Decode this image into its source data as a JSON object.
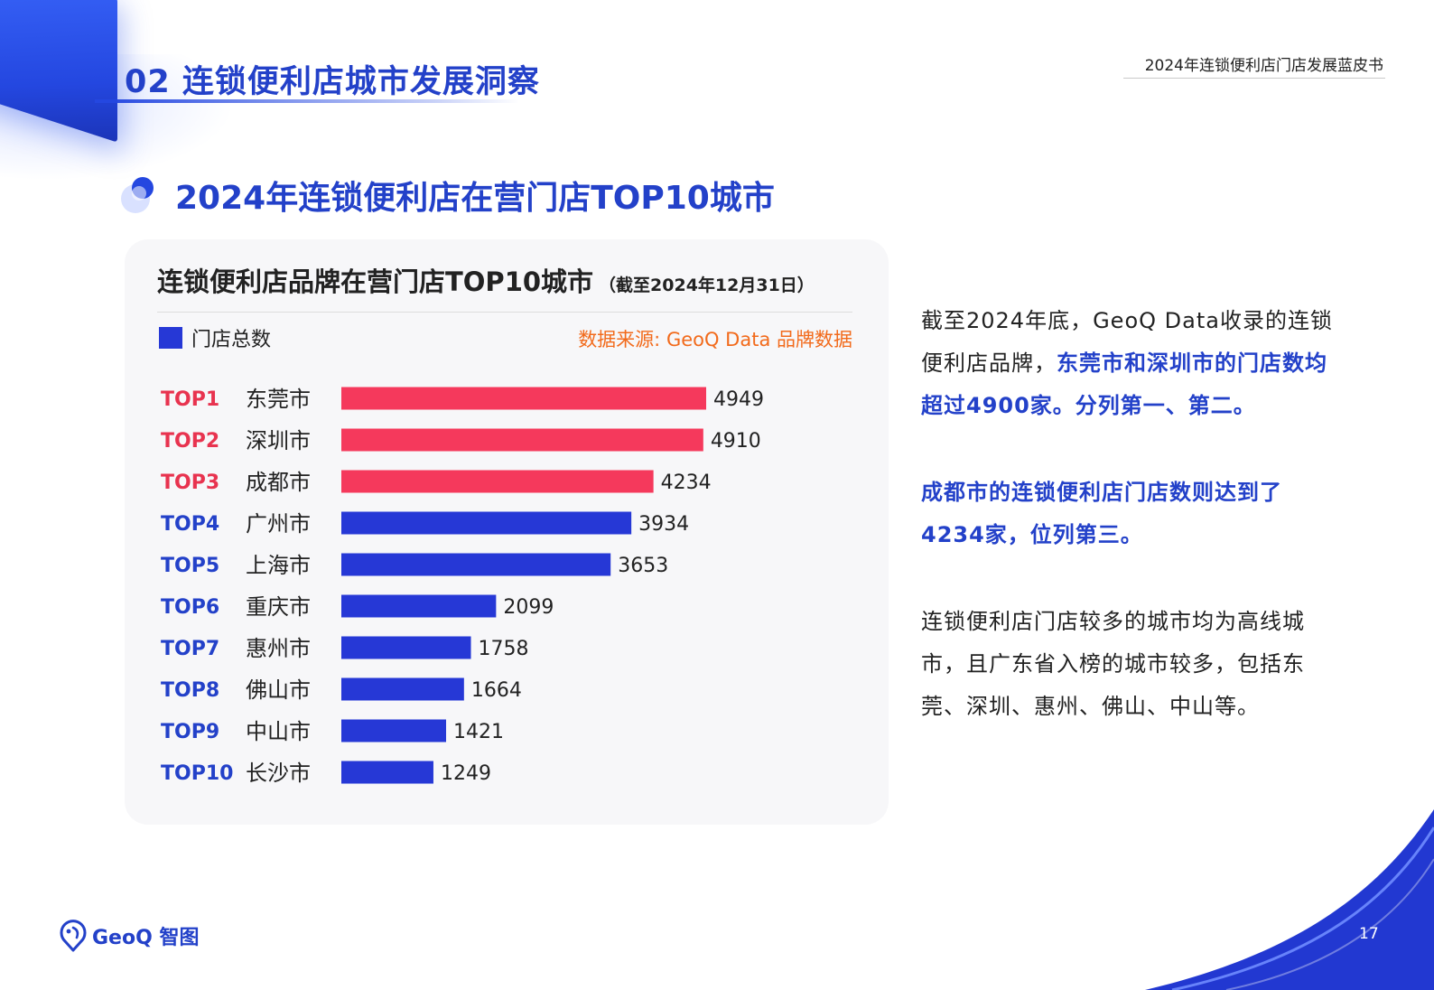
{
  "header": {
    "section_title": "02 连锁便利店城市发展洞察",
    "doc_title": "2024年连锁便利店门店发展蓝皮书"
  },
  "subtitle": "2024年连锁便利店在营门店TOP10城市",
  "chart": {
    "title": "连锁便利店品牌在营门店TOP10城市",
    "title_note": "（截至2024年12月31日）",
    "legend_label": "门店总数",
    "source": "数据来源: GeoQ Data 品牌数据"
  },
  "chart_data": {
    "type": "bar",
    "orientation": "horizontal",
    "ranks": [
      "TOP1",
      "TOP2",
      "TOP3",
      "TOP4",
      "TOP5",
      "TOP6",
      "TOP7",
      "TOP8",
      "TOP9",
      "TOP10"
    ],
    "categories": [
      "东莞市",
      "深圳市",
      "成都市",
      "广州市",
      "上海市",
      "重庆市",
      "惠州市",
      "佛山市",
      "中山市",
      "长沙市"
    ],
    "series": [
      {
        "name": "门店总数",
        "values": [
          4949,
          4910,
          4234,
          3934,
          3653,
          2099,
          1758,
          1664,
          1421,
          1249
        ]
      }
    ],
    "data_labels": true,
    "xlim": [
      0,
      4949
    ],
    "grid": false,
    "legend": "top-left",
    "colors": {
      "top3": "#f5395c",
      "rest": "#2638d6",
      "top3_rank_label": "#e8334f",
      "rest_rank_label": "#2341c9"
    }
  },
  "body": {
    "p1_a": "截至2024年底，GeoQ Data收录的连锁便利店品牌，",
    "p1_b": "东莞市和深圳市的门店数均超过4900家。分列第一、第二。",
    "p2": "成都市的连锁便利店门店数则达到了4234家，位列第三。",
    "p3": "连锁便利店门店较多的城市均为高线城市，且广东省入榜的城市较多，包括东莞、深圳、惠州、佛山、中山等。"
  },
  "footer": {
    "logo_text": "GeoQ 智图",
    "page_number": "17"
  },
  "theme": {
    "primary": "#2341c9",
    "accent_red": "#f5395c",
    "source_orange": "#f26a1b"
  }
}
